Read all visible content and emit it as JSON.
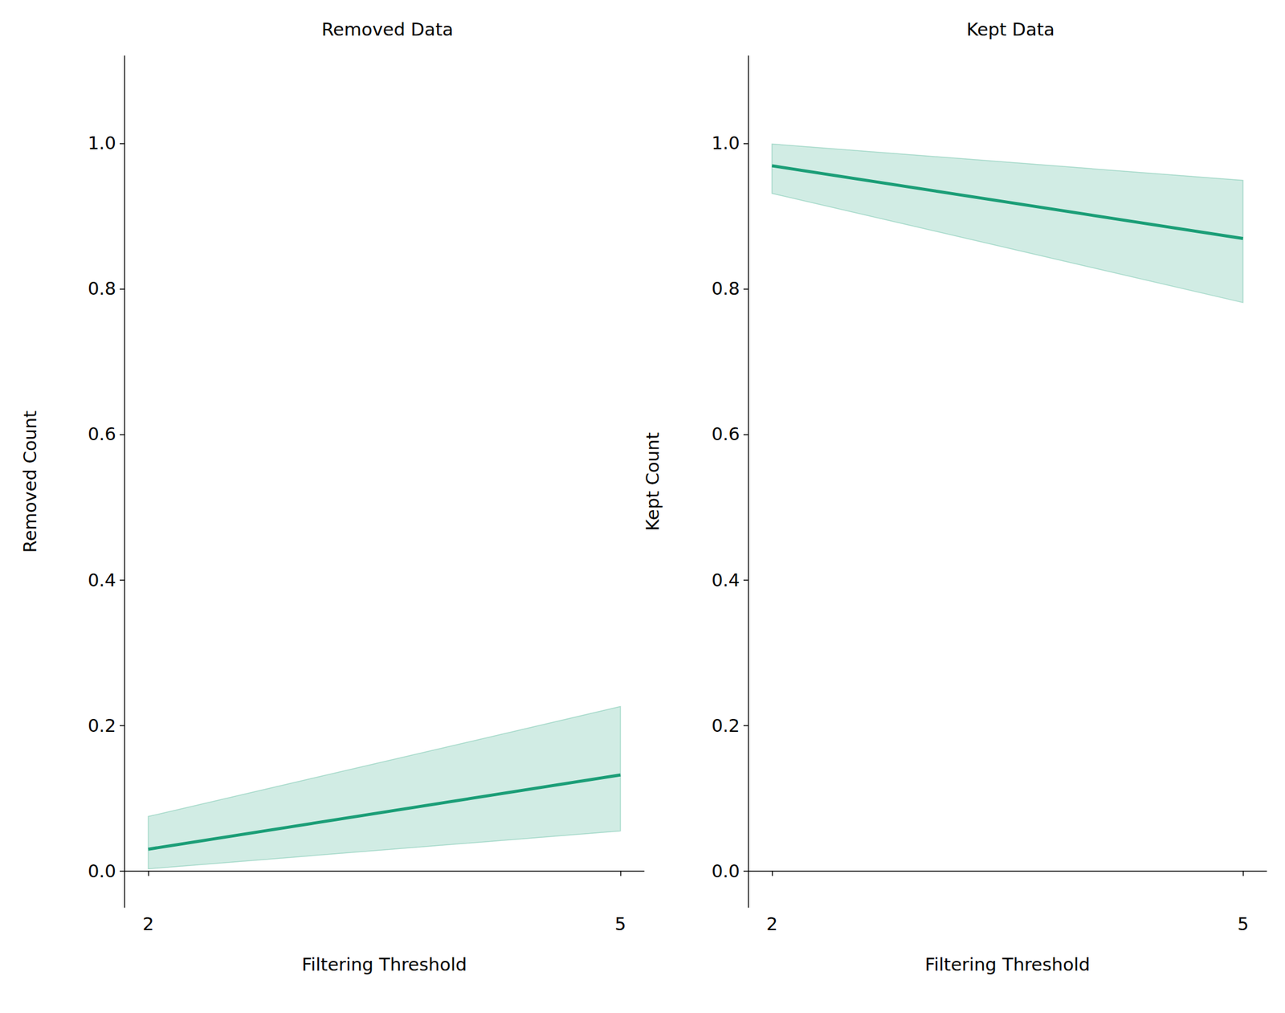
{
  "chart_data": [
    {
      "type": "line",
      "title": "Removed Data",
      "x_label": "Filtering Threshold",
      "y_label": "Removed Count",
      "x": [
        2,
        5
      ],
      "xlim": [
        1.85,
        5.15
      ],
      "xticks": [
        2,
        5
      ],
      "ylim": [
        -0.05,
        1.12
      ],
      "yticks": [
        {
          "value": 0,
          "label": "0.0"
        },
        {
          "value": 0.2,
          "label": "0.2"
        },
        {
          "value": 0.4,
          "label": "0.4"
        },
        {
          "value": 0.6,
          "label": "0.6"
        },
        {
          "value": 0.8,
          "label": "0.8"
        },
        {
          "value": 1,
          "label": "1.0"
        }
      ],
      "grid": false,
      "color": "#1b9e77",
      "values": [
        0.03,
        0.132
      ],
      "lower": [
        0.003,
        0.055
      ],
      "upper": [
        0.075,
        0.226
      ]
    },
    {
      "type": "line",
      "title": "Kept Data",
      "x_label": "Filtering Threshold",
      "y_label": "Kept Count",
      "x": [
        2,
        5
      ],
      "xlim": [
        1.85,
        5.15
      ],
      "xticks": [
        2,
        5
      ],
      "ylim": [
        -0.05,
        1.12
      ],
      "yticks": [
        {
          "value": 0,
          "label": "0.0"
        },
        {
          "value": 0.2,
          "label": "0.2"
        },
        {
          "value": 0.4,
          "label": "0.4"
        },
        {
          "value": 0.6,
          "label": "0.6"
        },
        {
          "value": 0.8,
          "label": "0.8"
        },
        {
          "value": 1,
          "label": "1.0"
        }
      ],
      "grid": false,
      "color": "#1b9e77",
      "values": [
        0.969,
        0.869
      ],
      "lower": [
        0.931,
        0.781
      ],
      "upper": [
        0.999,
        0.949
      ]
    }
  ]
}
